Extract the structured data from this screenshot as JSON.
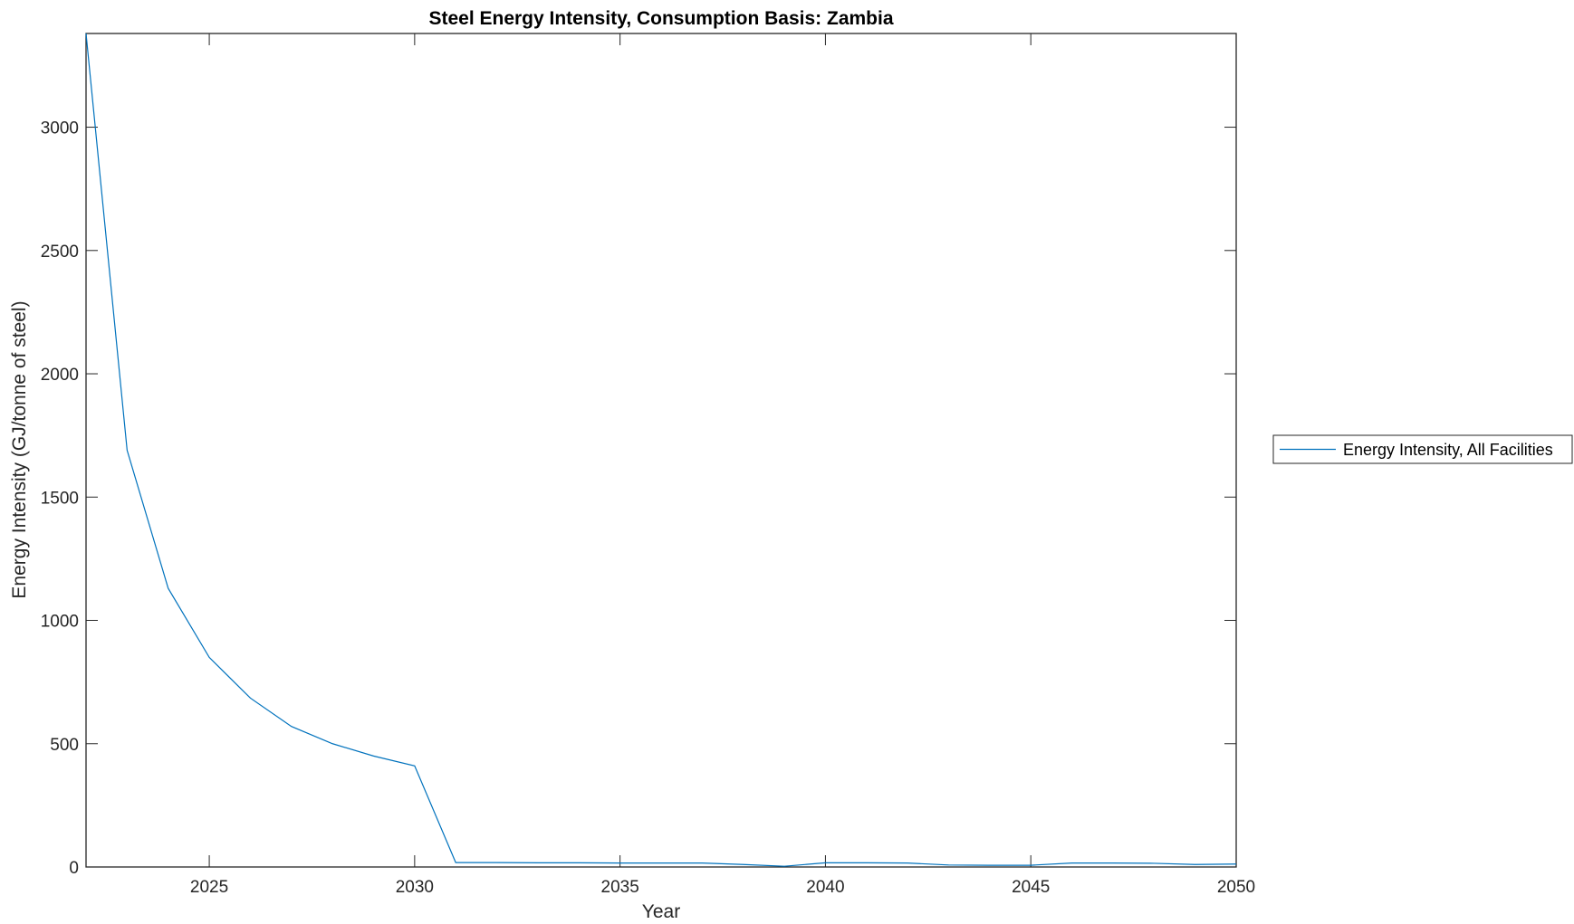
{
  "chart_data": {
    "type": "line",
    "title": "Steel Energy Intensity, Consumption Basis: Zambia",
    "xlabel": "Year",
    "ylabel": "Energy Intensity (GJ/tonne of steel)",
    "xlim": [
      2022,
      2050
    ],
    "ylim": [
      0,
      3380
    ],
    "xticks": [
      2025,
      2030,
      2035,
      2040,
      2045,
      2050
    ],
    "yticks": [
      0,
      500,
      1000,
      1500,
      2000,
      2500,
      3000
    ],
    "grid": false,
    "legend_placement": "outside-right",
    "series": [
      {
        "name": "Energy Intensity, All Facilities",
        "color": "#0072BD",
        "x": [
          2022,
          2023,
          2024,
          2025,
          2026,
          2027,
          2028,
          2029,
          2030,
          2031,
          2032,
          2033,
          2034,
          2035,
          2036,
          2037,
          2038,
          2039,
          2040,
          2041,
          2042,
          2043,
          2044,
          2045,
          2046,
          2047,
          2048,
          2049,
          2050
        ],
        "y": [
          3380,
          1690,
          1130,
          850,
          685,
          570,
          500,
          450,
          410,
          18,
          18,
          17,
          17,
          16,
          16,
          16,
          10,
          3,
          17,
          17,
          16,
          8,
          7,
          7,
          16,
          16,
          15,
          10,
          12
        ]
      }
    ]
  }
}
